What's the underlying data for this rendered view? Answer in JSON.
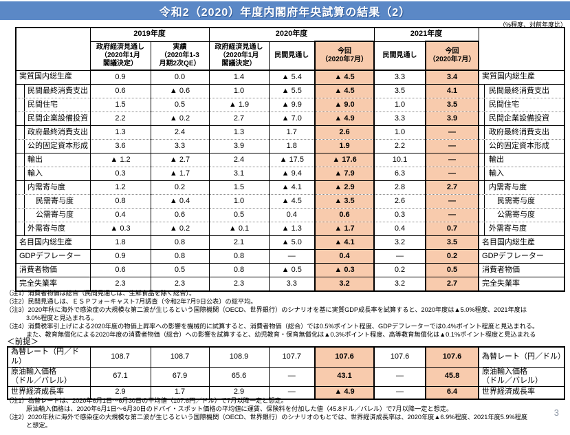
{
  "title": "令和2（2020）年度内閣府年央試算の結果（2）",
  "unit_note": "（%程度、対前年度比）",
  "page_number": "3",
  "colors": {
    "title_bar_blue": "#5b88c6",
    "highlight_orange": "#f8cbad"
  },
  "header": {
    "year_groups": [
      "2019年度",
      "2020年度",
      "2021年度"
    ],
    "columns": [
      "政府経済見通し\n（2020年1月\n閣議決定）",
      "実績\n（2020年1-3\n月期2次QE）",
      "政府経済見通し\n（2020年1月\n閣議決定）",
      "民間見通し",
      "今回\n（2020年7月）",
      "民間見通し",
      "今回\n（2020年7月）"
    ]
  },
  "main_table": {
    "rows": [
      {
        "label": "実質国内総生産",
        "indent": 0,
        "sep": "solid",
        "values": [
          "0.9",
          "0.0",
          "1.4",
          "▲ 5.4",
          "▲ 4.5",
          "3.3",
          "3.4"
        ]
      },
      {
        "label": "民間最終消費支出",
        "indent": 1,
        "sep": "solid",
        "values": [
          "0.6",
          "▲ 0.6",
          "1.0",
          "▲ 5.5",
          "▲ 4.5",
          "3.5",
          "4.1"
        ]
      },
      {
        "label": "民間住宅",
        "indent": 1,
        "sep": "dotted",
        "values": [
          "1.5",
          "0.5",
          "▲ 1.9",
          "▲ 9.9",
          "▲ 9.0",
          "1.0",
          "3.5"
        ]
      },
      {
        "label": "民間企業設備投資",
        "indent": 1,
        "sep": "dotted",
        "values": [
          "2.2",
          "▲ 0.2",
          "2.7",
          "▲ 7.0",
          "▲ 4.9",
          "3.3",
          "3.9"
        ]
      },
      {
        "label": "政府最終消費支出",
        "indent": 1,
        "sep": "solid",
        "values": [
          "1.3",
          "2.4",
          "1.3",
          "1.7",
          "2.6",
          "1.0",
          "—"
        ]
      },
      {
        "label": "公的固定資本形成",
        "indent": 1,
        "sep": "dotted",
        "values": [
          "3.6",
          "3.3",
          "3.9",
          "1.8",
          "1.9",
          "2.2",
          "—"
        ]
      },
      {
        "label": "輸出",
        "indent": 1,
        "sep": "solid",
        "values": [
          "▲ 1.2",
          "▲ 2.7",
          "2.4",
          "▲ 17.5",
          "▲ 17.6",
          "10.1",
          "—"
        ]
      },
      {
        "label": "輸入",
        "indent": 1,
        "sep": "dotted",
        "values": [
          "0.3",
          "▲ 1.7",
          "3.1",
          "▲ 9.4",
          "▲ 7.9",
          "6.3",
          "—"
        ]
      },
      {
        "label": "内需寄与度",
        "indent": 1,
        "sep": "solid",
        "values": [
          "1.2",
          "0.2",
          "1.5",
          "▲ 4.1",
          "▲ 2.9",
          "2.8",
          "2.7"
        ]
      },
      {
        "label": "民需寄与度",
        "indent": 2,
        "sep": "dotted",
        "values": [
          "0.8",
          "▲ 0.4",
          "1.0",
          "▲ 4.5",
          "▲ 3.5",
          "2.6",
          "—"
        ]
      },
      {
        "label": "公需寄与度",
        "indent": 2,
        "sep": "dotted",
        "values": [
          "0.4",
          "0.6",
          "0.5",
          "0.4",
          "0.6",
          "0.3",
          "—"
        ]
      },
      {
        "label": "外需寄与度",
        "indent": 1,
        "sep": "dotted",
        "values": [
          "▲ 0.3",
          "▲ 0.2",
          "▲ 0.1",
          "▲ 1.3",
          "▲ 1.7",
          "0.4",
          "0.7"
        ]
      },
      {
        "label": "名目国内総生産",
        "indent": 0,
        "sep": "solid",
        "values": [
          "1.8",
          "0.8",
          "2.1",
          "▲ 5.0",
          "▲ 4.1",
          "3.2",
          "3.5"
        ]
      },
      {
        "label": "GDPデフレーター",
        "indent": 0,
        "sep": "solid",
        "values": [
          "0.9",
          "0.8",
          "0.8",
          "—",
          "0.4",
          "—",
          "0.2"
        ]
      },
      {
        "label": "消費者物価",
        "indent": 0,
        "sep": "solid",
        "values": [
          "0.6",
          "0.5",
          "0.8",
          "▲ 0.5",
          "▲ 0.3",
          "0.2",
          "0.5"
        ]
      },
      {
        "label": "完全失業率",
        "indent": 0,
        "sep": "solid",
        "values": [
          "2.3",
          "2.3",
          "2.3",
          "3.3",
          "3.2",
          "3.2",
          "2.7"
        ]
      }
    ]
  },
  "notes_top": [
    {
      "t": "（注1）消費者物価は総合（民間見通しは、生鮮食品を除く総合）。",
      "cont": false
    },
    {
      "t": "（注2）民間見通しは、ＥＳＰフォーキャスト7月調査（令和2年7月9日公表）の総平均。",
      "cont": false
    },
    {
      "t": "（注3）2020年秋に海外で感染症の大規模な第二波が生じるという国際機関（OECD、世界銀行）のシナリオを基に実質GDP成長率を試算すると、2020年度は▲5.0%程度、2021年度は",
      "cont": false
    },
    {
      "t": "3.0%程度と見込まれる。",
      "cont": true
    },
    {
      "t": "（注4）消費税率引上げによる2020年度の物価上昇率への影響を機械的に試算すると、消費者物価（総合）では0.5%ポイント程度、GDPデフレーターでは0.4%ポイント程度と見込まれる。",
      "cont": false
    },
    {
      "t": "また、教育無償化による2020年度の消費者物価（総合）への影響を試算すると、幼児教育・保育無償化は▲0.3%ポイント程度、高等教育無償化は▲0.1%ポイント程度と見込まれる",
      "cont": true
    }
  ],
  "premise_label": "＜前提＞",
  "premises_table": {
    "rows": [
      {
        "label": "為替レート（円／ドル）",
        "h": 20,
        "values": [
          "108.7",
          "108.7",
          "108.9",
          "107.7",
          "107.6",
          "107.6",
          "107.6"
        ]
      },
      {
        "label": "原油輸入価格\n（ドル／バレル）",
        "h": 28,
        "values": [
          "67.1",
          "67.9",
          "65.6",
          "—",
          "43.1",
          "—",
          "45.8"
        ]
      },
      {
        "label": "世界経済成長率",
        "h": 18,
        "values": [
          "2.9",
          "1.7",
          "2.9",
          "—",
          "▲ 4.9",
          "—",
          "6.4"
        ]
      }
    ]
  },
  "notes_bottom": [
    {
      "t": "（注1）為替レートは、2020年6月1日～6月30日の平均値（107.6円／ドル）で7月以降一定と想定。",
      "cont": false
    },
    {
      "t": "原油輸入価格は、2020年6月1日～6月30日のドバイ・スポット価格の平均値に運賃、保険料を付加した値（45.8ドル／バレル）で7月以降一定と想定。",
      "cont": true
    },
    {
      "t": "（注2）2020年秋に海外で感染症の大規模な第二波が生じるという国際機関（OECD、世界銀行）のシナリオのもとでは、世界経済成長率は、2020年度▲6.9%程度、2021年度5.9%程度",
      "cont": false
    },
    {
      "t": "と想定。",
      "cont": true
    }
  ]
}
